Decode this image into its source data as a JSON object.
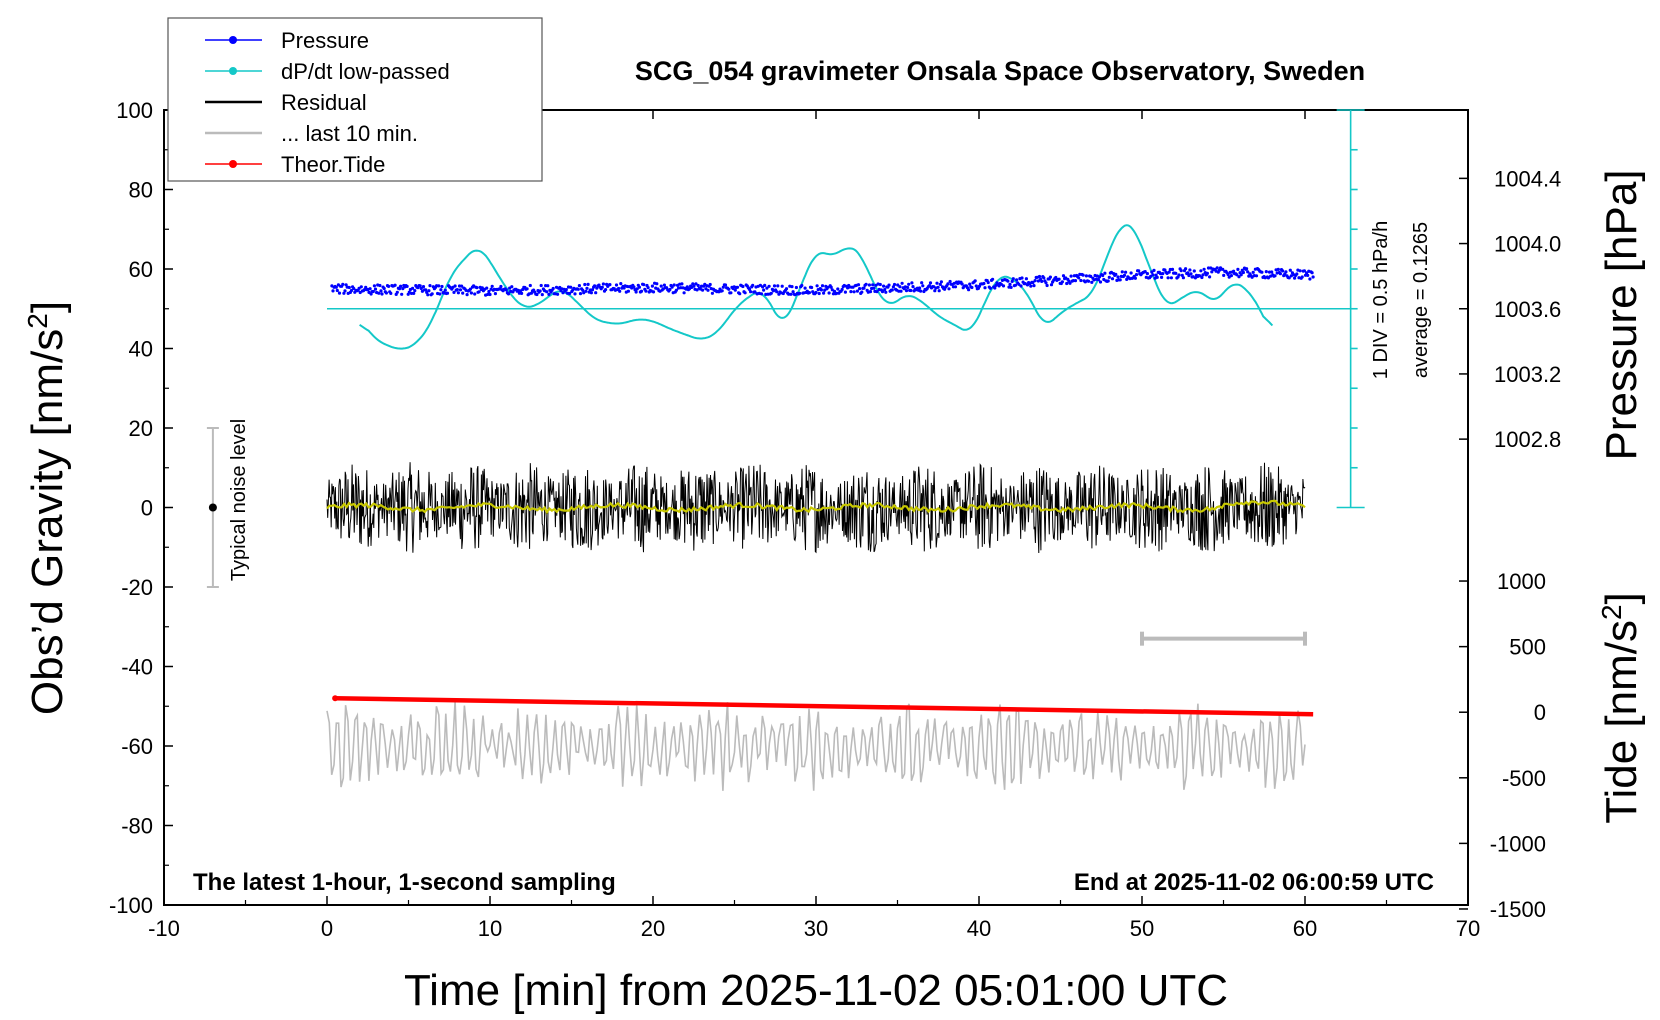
{
  "chart_data": {
    "type": "line",
    "title": "SCG_054 gravimeter Onsala Space Observatory, Sweden",
    "xlabel": "Time [min] from 2025-11-02 05:01:00 UTC",
    "ylabel_prefix": "Obs’d Gravity [nm/s",
    "ylabel_exp": "2",
    "ylabel_suffix": "]",
    "pressure_label": "Pressure [hPa]",
    "tide_label_prefix": "Tide [nm/s",
    "tide_label_exp": "2",
    "tide_label_suffix": "]",
    "xlim": [
      -10,
      70
    ],
    "ylim": [
      -100,
      100
    ],
    "xticks": [
      -10,
      0,
      10,
      20,
      30,
      40,
      50,
      60,
      70
    ],
    "yticks": [
      -100,
      -80,
      -60,
      -40,
      -20,
      0,
      20,
      40,
      60,
      80,
      100
    ],
    "pressure_axis": {
      "ticks": [
        1002.8,
        1003.2,
        1003.6,
        1004.0,
        1004.4
      ],
      "tick_labels": [
        "1002.8",
        "1003.2",
        "1003.6",
        "1004.0",
        "1004.4"
      ],
      "anchor_value": 1003.6,
      "anchor_gravity": 50,
      "gravity_per_unit": 41
    },
    "tide_axis": {
      "ticks": [
        -1500,
        -1000,
        -500,
        0,
        500,
        1000
      ],
      "tick_labels": [
        "-1500",
        "-1000",
        "-500",
        "0",
        "500",
        "1000"
      ],
      "gravity_at_zero": -51.5,
      "gravity_per_unit": 0.033
    },
    "dpdt_scale": {
      "label": "1 DIV = 0.5 hPa/h",
      "average_label": "average = 0.1265",
      "x": 62.8,
      "y_bottom": 0,
      "y_top": 100,
      "divisions": 10,
      "baseline_gravity": 50
    },
    "noise_bar": {
      "label": "Typical noise level",
      "x": -7,
      "low": -20,
      "high": 20,
      "center": 0
    },
    "last10_bar": {
      "x_start": 50,
      "x_end": 60,
      "y": -33
    },
    "series": [
      {
        "name": "Pressure",
        "color": "#0000ff",
        "type": "scatter",
        "x_range": [
          0.3,
          60.5
        ],
        "trend": [
          [
            0,
            55
          ],
          [
            10,
            54.5
          ],
          [
            20,
            55.3
          ],
          [
            30,
            54.6
          ],
          [
            40,
            56
          ],
          [
            50,
            58.5
          ],
          [
            55,
            59.2
          ],
          [
            60.5,
            58.5
          ]
        ],
        "noise": 1.2
      },
      {
        "name": "dP/dt low-passed",
        "color": "#14c8c8",
        "type": "line",
        "points": [
          [
            2,
            47.5
          ],
          [
            3,
            42
          ],
          [
            4.5,
            39.5
          ],
          [
            5.5,
            41
          ],
          [
            6.5,
            47
          ],
          [
            7.5,
            58
          ],
          [
            8.5,
            63
          ],
          [
            9.3,
            66
          ],
          [
            10,
            62
          ],
          [
            11,
            55
          ],
          [
            12,
            50
          ],
          [
            13,
            51
          ],
          [
            14,
            54.5
          ],
          [
            14.5,
            55
          ],
          [
            15.5,
            51
          ],
          [
            16.5,
            47
          ],
          [
            18,
            46
          ],
          [
            19,
            47.5
          ],
          [
            20,
            47
          ],
          [
            21,
            45
          ],
          [
            22,
            43.5
          ],
          [
            23,
            42
          ],
          [
            24,
            44
          ],
          [
            25,
            50
          ],
          [
            26,
            53.5
          ],
          [
            26.7,
            55
          ],
          [
            27.5,
            49
          ],
          [
            28,
            45
          ],
          [
            29,
            55
          ],
          [
            30,
            65
          ],
          [
            31,
            63
          ],
          [
            32,
            66
          ],
          [
            32.8,
            64
          ],
          [
            33.5,
            56
          ],
          [
            34.5,
            50
          ],
          [
            35.5,
            54
          ],
          [
            36.5,
            52
          ],
          [
            37.5,
            48
          ],
          [
            38.5,
            46
          ],
          [
            39.5,
            43.5
          ],
          [
            40.5,
            53
          ],
          [
            41.2,
            58.5
          ],
          [
            42,
            58
          ],
          [
            43,
            54
          ],
          [
            44,
            45
          ],
          [
            45,
            49
          ],
          [
            46,
            51.5
          ],
          [
            47,
            53.5
          ],
          [
            48,
            65
          ],
          [
            48.8,
            72
          ],
          [
            49.5,
            71
          ],
          [
            50.5,
            60
          ],
          [
            51.5,
            50
          ],
          [
            52.5,
            53
          ],
          [
            53.5,
            55
          ],
          [
            54.5,
            51
          ],
          [
            55.5,
            57
          ],
          [
            56.5,
            55
          ],
          [
            57.5,
            48
          ],
          [
            58,
            43
          ]
        ]
      },
      {
        "name": "Residual",
        "color": "#000000",
        "type": "line",
        "x_range": [
          0,
          60
        ],
        "amplitude": 10
      },
      {
        "name": "Residual smoothed",
        "color": "#c8c800",
        "type": "line",
        "x_range": [
          0,
          60
        ]
      },
      {
        "name": "... last 10 min.",
        "color": "#bbbbbb",
        "type": "line",
        "x_range": [
          0,
          60
        ],
        "center": -60,
        "amplitude": 9
      },
      {
        "name": "Theor.Tide",
        "color": "#ff0000",
        "type": "line",
        "points": [
          [
            0.5,
            -48
          ],
          [
            60.5,
            -52
          ]
        ]
      }
    ],
    "legend": [
      {
        "label": "Pressure",
        "color": "#0000ff",
        "marker": "dot"
      },
      {
        "label": "dP/dt low-passed",
        "color": "#14c8c8",
        "marker": "dot"
      },
      {
        "label": "Residual",
        "color": "#000000",
        "marker": "none"
      },
      {
        "label": "... last 10 min.",
        "color": "#bbbbbb",
        "marker": "none"
      },
      {
        "label": "Theor.Tide",
        "color": "#ff0000",
        "marker": "dot"
      }
    ],
    "legend_position": "top-left",
    "annotation_left": "The latest 1-hour, 1-second sampling",
    "annotation_right": "End at 2025-11-02 06:00:59 UTC"
  }
}
